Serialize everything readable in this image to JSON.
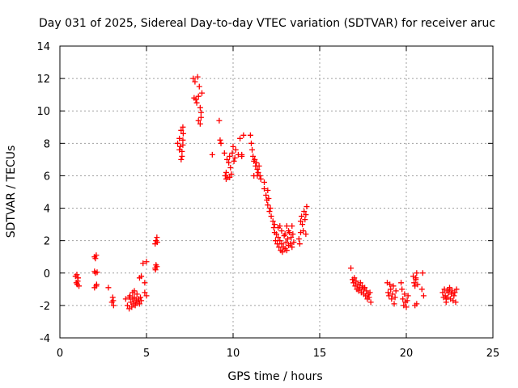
{
  "chart_data": {
    "type": "scatter",
    "title": "Day 031 of 2025, Sidereal Day-to-day VTEC variation (SDTVAR) for receiver aruc",
    "xlabel": "GPS time / hours",
    "ylabel": "SDTVAR / TECUs",
    "xlim": [
      0,
      25
    ],
    "ylim": [
      -4,
      14
    ],
    "xticks": [
      0,
      5,
      10,
      15,
      20,
      25
    ],
    "yticks": [
      -4,
      -2,
      0,
      2,
      4,
      6,
      8,
      10,
      12,
      14
    ],
    "grid": true,
    "marker": "+",
    "color": "#ff0000",
    "series": [
      {
        "name": "SDTVAR",
        "points": [
          [
            0.9,
            -0.2
          ],
          [
            0.95,
            -0.6
          ],
          [
            1.0,
            -0.7
          ],
          [
            1.05,
            -0.3
          ],
          [
            1.1,
            -0.8
          ],
          [
            0.98,
            -0.1
          ],
          [
            1.03,
            -0.5
          ],
          [
            2.0,
            1.0
          ],
          [
            2.05,
            0.9
          ],
          [
            2.1,
            1.1
          ],
          [
            2.0,
            0.1
          ],
          [
            2.05,
            0.0
          ],
          [
            2.1,
            -0.8
          ],
          [
            2.0,
            -0.9
          ],
          [
            2.15,
            0.05
          ],
          [
            2.12,
            -0.7
          ],
          [
            2.8,
            -0.9
          ],
          [
            3.05,
            -1.5
          ],
          [
            3.1,
            -2.0
          ],
          [
            3.0,
            -1.8
          ],
          [
            3.08,
            -1.7
          ],
          [
            3.8,
            -1.6
          ],
          [
            3.9,
            -2.0
          ],
          [
            4.0,
            -2.2
          ],
          [
            4.05,
            -1.4
          ],
          [
            4.1,
            -1.8
          ],
          [
            4.15,
            -2.1
          ],
          [
            4.2,
            -1.6
          ],
          [
            4.25,
            -1.9
          ],
          [
            4.3,
            -1.5
          ],
          [
            4.35,
            -2.0
          ],
          [
            4.4,
            -1.7
          ],
          [
            4.45,
            -1.3
          ],
          [
            4.5,
            -1.8
          ],
          [
            4.55,
            -1.6
          ],
          [
            4.6,
            -1.9
          ],
          [
            4.65,
            -1.5
          ],
          [
            4.7,
            -1.7
          ],
          [
            4.0,
            -1.5
          ],
          [
            4.2,
            -1.2
          ],
          [
            4.3,
            -1.1
          ],
          [
            4.4,
            -1.8
          ],
          [
            4.6,
            -0.3
          ],
          [
            4.7,
            -0.2
          ],
          [
            4.9,
            -0.6
          ],
          [
            4.9,
            -1.2
          ],
          [
            5.0,
            -1.4
          ],
          [
            4.8,
            0.6
          ],
          [
            5.0,
            0.7
          ],
          [
            5.5,
            1.8
          ],
          [
            5.55,
            2.0
          ],
          [
            5.6,
            2.2
          ],
          [
            5.62,
            1.9
          ],
          [
            5.5,
            0.3
          ],
          [
            5.55,
            0.5
          ],
          [
            5.6,
            0.4
          ],
          [
            5.52,
            0.2
          ],
          [
            6.8,
            8.0
          ],
          [
            6.9,
            8.3
          ],
          [
            6.95,
            7.8
          ],
          [
            7.0,
            8.8
          ],
          [
            7.05,
            7.2
          ],
          [
            7.1,
            9.0
          ],
          [
            7.1,
            8.2
          ],
          [
            7.05,
            7.5
          ],
          [
            7.0,
            7.0
          ],
          [
            7.1,
            7.9
          ],
          [
            6.9,
            7.6
          ],
          [
            7.12,
            8.6
          ],
          [
            7.7,
            12.0
          ],
          [
            7.8,
            11.8
          ],
          [
            7.75,
            10.8
          ],
          [
            7.85,
            10.7
          ],
          [
            7.9,
            10.5
          ],
          [
            7.95,
            12.1
          ],
          [
            8.0,
            10.9
          ],
          [
            8.05,
            11.5
          ],
          [
            8.1,
            10.2
          ],
          [
            8.0,
            9.4
          ],
          [
            8.1,
            9.2
          ],
          [
            8.15,
            9.6
          ],
          [
            8.2,
            11.1
          ],
          [
            8.15,
            9.9
          ],
          [
            8.8,
            7.3
          ],
          [
            9.2,
            9.4
          ],
          [
            9.3,
            8.0
          ],
          [
            9.25,
            8.2
          ],
          [
            9.5,
            7.4
          ],
          [
            9.55,
            6.0
          ],
          [
            9.6,
            6.2
          ],
          [
            9.65,
            7.0
          ],
          [
            9.7,
            5.9
          ],
          [
            9.75,
            6.8
          ],
          [
            9.8,
            7.2
          ],
          [
            9.85,
            6.5
          ],
          [
            9.9,
            6.1
          ],
          [
            9.95,
            7.4
          ],
          [
            10.0,
            7.8
          ],
          [
            10.05,
            6.9
          ],
          [
            10.1,
            7.1
          ],
          [
            10.15,
            7.6
          ],
          [
            9.6,
            5.8
          ],
          [
            9.8,
            5.9
          ],
          [
            10.3,
            7.3
          ],
          [
            10.5,
            7.3
          ],
          [
            10.4,
            8.3
          ],
          [
            10.6,
            8.5
          ],
          [
            10.5,
            7.2
          ],
          [
            11.0,
            8.5
          ],
          [
            11.05,
            8.0
          ],
          [
            11.1,
            7.6
          ],
          [
            11.15,
            7.2
          ],
          [
            11.2,
            6.9
          ],
          [
            11.25,
            7.0
          ],
          [
            11.3,
            6.6
          ],
          [
            11.35,
            6.8
          ],
          [
            11.4,
            6.4
          ],
          [
            11.45,
            6.2
          ],
          [
            11.5,
            6.6
          ],
          [
            11.55,
            6.0
          ],
          [
            11.6,
            5.8
          ],
          [
            11.2,
            6.0
          ],
          [
            11.4,
            6.0
          ],
          [
            11.8,
            5.6
          ],
          [
            11.8,
            5.2
          ],
          [
            11.9,
            4.8
          ],
          [
            11.95,
            4.5
          ],
          [
            12.0,
            4.2
          ],
          [
            12.05,
            4.6
          ],
          [
            12.1,
            3.8
          ],
          [
            12.15,
            4.0
          ],
          [
            12.2,
            3.5
          ],
          [
            12.0,
            5.1
          ],
          [
            12.3,
            3.2
          ],
          [
            12.35,
            2.8
          ],
          [
            12.4,
            2.5
          ],
          [
            12.45,
            2.0
          ],
          [
            12.5,
            2.4
          ],
          [
            12.55,
            1.8
          ],
          [
            12.6,
            2.2
          ],
          [
            12.65,
            1.6
          ],
          [
            12.7,
            2.0
          ],
          [
            12.75,
            1.4
          ],
          [
            12.8,
            1.8
          ],
          [
            12.85,
            1.3
          ],
          [
            12.9,
            1.6
          ],
          [
            12.95,
            2.3
          ],
          [
            13.0,
            1.5
          ],
          [
            13.05,
            1.9
          ],
          [
            13.1,
            1.4
          ],
          [
            13.15,
            2.1
          ],
          [
            13.2,
            1.7
          ],
          [
            13.25,
            2.5
          ],
          [
            13.3,
            1.8
          ],
          [
            13.35,
            2.2
          ],
          [
            13.4,
            1.6
          ],
          [
            13.45,
            2.4
          ],
          [
            13.5,
            1.9
          ],
          [
            12.6,
            2.8
          ],
          [
            12.8,
            2.6
          ],
          [
            13.0,
            2.4
          ],
          [
            13.2,
            2.6
          ],
          [
            12.4,
            3.0
          ],
          [
            12.7,
            2.9
          ],
          [
            13.1,
            2.9
          ],
          [
            13.4,
            2.9
          ],
          [
            13.8,
            2.1
          ],
          [
            13.85,
            1.8
          ],
          [
            13.9,
            3.2
          ],
          [
            13.95,
            3.5
          ],
          [
            14.0,
            3.0
          ],
          [
            14.05,
            2.6
          ],
          [
            14.1,
            3.8
          ],
          [
            14.15,
            3.3
          ],
          [
            14.2,
            2.4
          ],
          [
            14.25,
            4.1
          ],
          [
            13.9,
            2.5
          ],
          [
            14.2,
            3.6
          ],
          [
            16.8,
            0.3
          ],
          [
            16.9,
            -0.4
          ],
          [
            16.95,
            -0.6
          ],
          [
            17.0,
            -0.3
          ],
          [
            17.05,
            -0.8
          ],
          [
            17.1,
            -0.5
          ],
          [
            17.15,
            -1.0
          ],
          [
            17.2,
            -0.7
          ],
          [
            17.25,
            -1.1
          ],
          [
            17.3,
            -0.9
          ],
          [
            17.35,
            -0.6
          ],
          [
            17.4,
            -1.2
          ],
          [
            17.45,
            -0.8
          ],
          [
            17.5,
            -1.0
          ],
          [
            17.55,
            -1.3
          ],
          [
            17.6,
            -0.9
          ],
          [
            17.65,
            -1.4
          ],
          [
            17.7,
            -1.1
          ],
          [
            17.75,
            -1.6
          ],
          [
            17.8,
            -1.3
          ],
          [
            17.85,
            -1.5
          ],
          [
            17.9,
            -1.2
          ],
          [
            17.95,
            -1.8
          ],
          [
            18.9,
            -0.6
          ],
          [
            18.95,
            -1.2
          ],
          [
            19.0,
            -1.4
          ],
          [
            19.05,
            -0.7
          ],
          [
            19.1,
            -1.0
          ],
          [
            19.15,
            -1.6
          ],
          [
            19.2,
            -1.3
          ],
          [
            19.25,
            -0.8
          ],
          [
            19.3,
            -1.9
          ],
          [
            19.35,
            -1.5
          ],
          [
            19.4,
            -1.1
          ],
          [
            19.7,
            -0.6
          ],
          [
            19.8,
            -1.6
          ],
          [
            19.85,
            -2.0
          ],
          [
            19.9,
            -1.3
          ],
          [
            19.95,
            -1.8
          ],
          [
            20.0,
            -2.1
          ],
          [
            20.05,
            -1.7
          ],
          [
            20.1,
            -1.4
          ],
          [
            19.75,
            -1.0
          ],
          [
            20.4,
            -0.2
          ],
          [
            20.45,
            -0.6
          ],
          [
            20.5,
            -0.8
          ],
          [
            20.55,
            -0.4
          ],
          [
            20.6,
            0.0
          ],
          [
            20.65,
            -0.7
          ],
          [
            20.5,
            -2.0
          ],
          [
            20.6,
            -1.9
          ],
          [
            20.55,
            -0.3
          ],
          [
            20.9,
            -1.0
          ],
          [
            20.95,
            0.0
          ],
          [
            21.0,
            -1.4
          ],
          [
            22.1,
            -1.2
          ],
          [
            22.15,
            -1.5
          ],
          [
            22.2,
            -1.0
          ],
          [
            22.25,
            -1.4
          ],
          [
            22.3,
            -1.6
          ],
          [
            22.35,
            -1.1
          ],
          [
            22.4,
            -1.5
          ],
          [
            22.45,
            -1.2
          ],
          [
            22.5,
            -0.9
          ],
          [
            22.55,
            -1.6
          ],
          [
            22.6,
            -1.3
          ],
          [
            22.65,
            -1.1
          ],
          [
            22.7,
            -1.7
          ],
          [
            22.75,
            -1.4
          ],
          [
            22.8,
            -1.2
          ],
          [
            22.85,
            -1.8
          ],
          [
            22.9,
            -1.0
          ],
          [
            22.3,
            -1.8
          ],
          [
            22.5,
            -1.0
          ]
        ]
      }
    ]
  }
}
